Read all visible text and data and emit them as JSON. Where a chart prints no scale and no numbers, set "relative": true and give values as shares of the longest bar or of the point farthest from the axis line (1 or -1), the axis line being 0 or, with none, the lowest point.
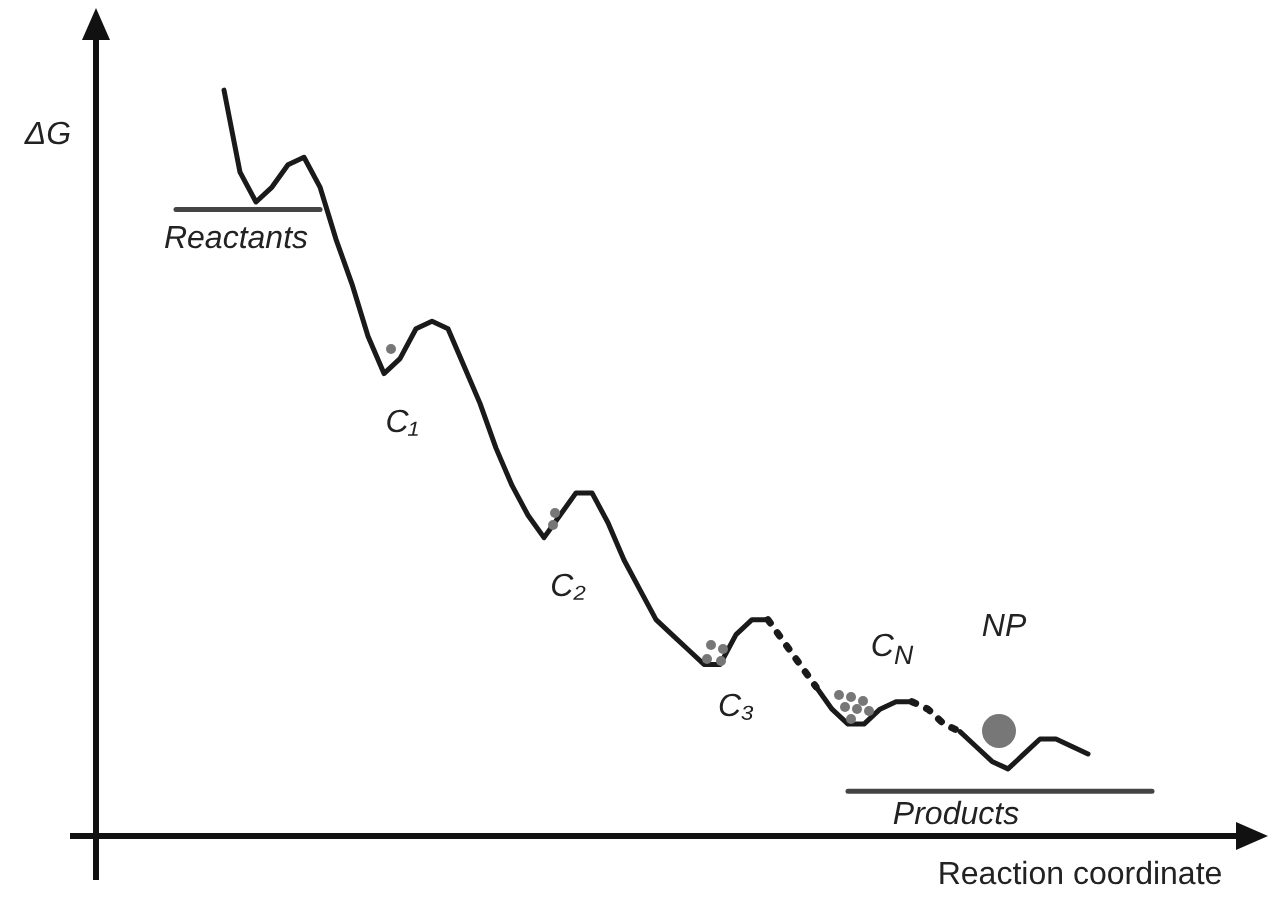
{
  "chart_data": {
    "type": "line",
    "relative": true,
    "ylabel": "ΔG",
    "xlabel": "Reaction coordinate",
    "marker": "none",
    "categories": [
      null,
      null,
      null,
      null,
      null,
      null,
      null,
      null,
      null,
      null,
      null,
      null,
      null,
      null,
      null,
      null,
      null,
      null,
      null,
      null,
      null,
      null,
      null,
      null,
      null,
      null,
      null,
      null,
      null,
      null,
      null,
      null,
      null,
      null,
      null,
      null,
      null,
      null,
      null,
      null,
      null,
      null,
      null,
      null,
      null,
      null,
      null,
      null,
      null,
      null,
      null,
      null,
      null,
      null,
      null,
      null,
      null,
      null,
      null,
      null,
      null,
      null,
      null,
      null,
      null,
      null,
      null,
      null,
      null,
      null,
      null,
      null,
      null
    ],
    "series": [
      {
        "color": "#1a1a1a",
        "line_style": "solid",
        "values": [
          null,
          null,
          null,
          null,
          null,
          null,
          null,
          null,
          1.0,
          0.89,
          0.85,
          0.87,
          0.9,
          0.91,
          0.87,
          0.8,
          0.74,
          0.67,
          0.62,
          0.64,
          0.68,
          0.69,
          0.68,
          0.63,
          0.58,
          0.52,
          0.47,
          0.43,
          0.4,
          0.43,
          0.46,
          0.46,
          0.42,
          0.37,
          0.33,
          0.29,
          0.27,
          0.25,
          0.23,
          0.23,
          0.27,
          0.29,
          0.29,
          null,
          null,
          null,
          null,
          null,
          null,
          null,
          null,
          null,
          null,
          null,
          null,
          null,
          null,
          null,
          null,
          null,
          null,
          null,
          null,
          null,
          null,
          null,
          null,
          null,
          null,
          null,
          null,
          null,
          null
        ]
      },
      {
        "color": "#1a1a1a",
        "line_style": "dotted",
        "values": [
          null,
          null,
          null,
          null,
          null,
          null,
          null,
          null,
          null,
          null,
          null,
          null,
          null,
          null,
          null,
          null,
          null,
          null,
          null,
          null,
          null,
          null,
          null,
          null,
          null,
          null,
          null,
          null,
          null,
          null,
          null,
          null,
          null,
          null,
          null,
          null,
          null,
          null,
          null,
          null,
          null,
          null,
          0.29,
          0.26,
          0.23,
          0.2,
          null,
          null,
          null,
          null,
          null,
          null,
          null,
          null,
          null,
          null,
          null,
          null,
          null,
          null,
          null,
          null,
          null,
          null,
          null,
          null,
          null,
          null,
          null,
          null,
          null,
          null,
          null
        ]
      },
      {
        "color": "#1a1a1a",
        "line_style": "solid",
        "values": [
          null,
          null,
          null,
          null,
          null,
          null,
          null,
          null,
          null,
          null,
          null,
          null,
          null,
          null,
          null,
          null,
          null,
          null,
          null,
          null,
          null,
          null,
          null,
          null,
          null,
          null,
          null,
          null,
          null,
          null,
          null,
          null,
          null,
          null,
          null,
          null,
          null,
          null,
          null,
          null,
          null,
          null,
          null,
          null,
          null,
          0.2,
          0.17,
          0.15,
          0.15,
          0.17,
          0.18,
          0.18,
          null,
          null,
          null,
          null,
          null,
          null,
          null,
          null,
          null,
          null,
          null,
          null,
          null,
          null,
          null,
          null,
          null,
          null,
          null,
          null,
          null
        ]
      },
      {
        "color": "#1a1a1a",
        "line_style": "dotted",
        "values": [
          null,
          null,
          null,
          null,
          null,
          null,
          null,
          null,
          null,
          null,
          null,
          null,
          null,
          null,
          null,
          null,
          null,
          null,
          null,
          null,
          null,
          null,
          null,
          null,
          null,
          null,
          null,
          null,
          null,
          null,
          null,
          null,
          null,
          null,
          null,
          null,
          null,
          null,
          null,
          null,
          null,
          null,
          null,
          null,
          null,
          null,
          null,
          null,
          null,
          null,
          null,
          0.18,
          0.17,
          0.15,
          0.14,
          null,
          null,
          null,
          null,
          null,
          null,
          null,
          null,
          null,
          null,
          null,
          null,
          null,
          null,
          null,
          null,
          null,
          null
        ]
      },
      {
        "color": "#1a1a1a",
        "line_style": "solid",
        "values": [
          null,
          null,
          null,
          null,
          null,
          null,
          null,
          null,
          null,
          null,
          null,
          null,
          null,
          null,
          null,
          null,
          null,
          null,
          null,
          null,
          null,
          null,
          null,
          null,
          null,
          null,
          null,
          null,
          null,
          null,
          null,
          null,
          null,
          null,
          null,
          null,
          null,
          null,
          null,
          null,
          null,
          null,
          null,
          null,
          null,
          null,
          null,
          null,
          null,
          null,
          null,
          null,
          null,
          null,
          0.14,
          0.12,
          0.1,
          0.09,
          0.11,
          0.13,
          0.13,
          0.12,
          0.11,
          null,
          null,
          null,
          null,
          null,
          null,
          null,
          null,
          null,
          null
        ]
      },
      {
        "color": "#444444",
        "line_style": "solid",
        "values": [
          null,
          null,
          null,
          null,
          null,
          0.84,
          0.84,
          0.84,
          0.84,
          0.84,
          0.84,
          0.84,
          0.84,
          0.84,
          0.84,
          null,
          null,
          null,
          null,
          null,
          null,
          null,
          null,
          null,
          null,
          null,
          null,
          null,
          null,
          null,
          null,
          null,
          null,
          null,
          null,
          null,
          null,
          null,
          null,
          null,
          null,
          null,
          null,
          null,
          null,
          null,
          null,
          null,
          null,
          null,
          null,
          null,
          null,
          null,
          null,
          null,
          null,
          null,
          null,
          null,
          null,
          null,
          null,
          null,
          null,
          null,
          null,
          null,
          null,
          null,
          null,
          null,
          null
        ]
      },
      {
        "color": "#444444",
        "line_style": "solid",
        "values": [
          null,
          null,
          null,
          null,
          null,
          null,
          null,
          null,
          null,
          null,
          null,
          null,
          null,
          null,
          null,
          null,
          null,
          null,
          null,
          null,
          null,
          null,
          null,
          null,
          null,
          null,
          null,
          null,
          null,
          null,
          null,
          null,
          null,
          null,
          null,
          null,
          null,
          null,
          null,
          null,
          null,
          null,
          null,
          null,
          null,
          null,
          null,
          0.06,
          0.06,
          0.06,
          0.06,
          0.06,
          0.06,
          0.06,
          0.06,
          0.06,
          0.06,
          0.06,
          0.06,
          0.06,
          0.06,
          0.06,
          0.06,
          0.06,
          0.06,
          0.06,
          0.06,
          null,
          null,
          null,
          null,
          null,
          null
        ]
      }
    ],
    "annotations": [
      "Reactants",
      "C₁",
      "C₂",
      "C₃",
      "C$_{N}$",
      "NP",
      "Products"
    ]
  }
}
